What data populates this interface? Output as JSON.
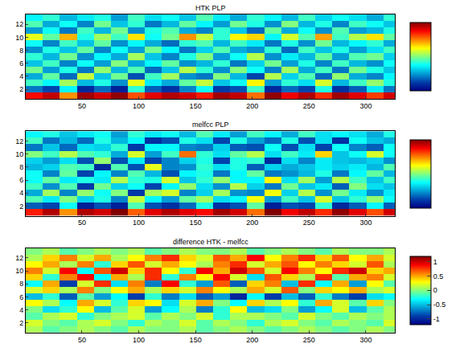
{
  "chart_data": [
    {
      "type": "heatmap",
      "title": "HTK PLP",
      "x": [
        8,
        23,
        38,
        53,
        68,
        83,
        98,
        113,
        128,
        143,
        158,
        173,
        188,
        203,
        218,
        233,
        248,
        263,
        278,
        293,
        308,
        323
      ],
      "y": [
        1,
        2,
        3,
        4,
        5,
        6,
        7,
        8,
        9,
        10,
        11,
        12,
        13
      ],
      "z": [
        [
          3.2,
          3.6,
          2.4,
          3.8,
          3.5,
          3.9,
          2.8,
          3.4,
          3.7,
          3.5,
          3.1,
          3.8,
          3.6,
          2.6,
          3.9,
          3.3,
          3.7,
          3.0,
          3.8,
          3.4,
          2.9,
          3.5
        ],
        [
          -0.8,
          -1.2,
          0.2,
          -1.5,
          -0.9,
          -1.6,
          0.5,
          -1.0,
          -1.4,
          -0.7,
          0.3,
          -1.3,
          -1.1,
          0.6,
          -1.5,
          -0.9,
          -1.2,
          0.4,
          -1.4,
          -1.0,
          0.1,
          -0.8
        ],
        [
          0.6,
          0.2,
          1.2,
          -0.3,
          0.4,
          -0.6,
          1.6,
          0.1,
          -0.4,
          0.8,
          1.4,
          -0.2,
          0.3,
          1.8,
          -0.5,
          0.5,
          0.0,
          1.5,
          -0.3,
          0.6,
          1.1,
          0.4
        ],
        [
          -0.4,
          0.8,
          -0.9,
          1.4,
          -0.2,
          0.9,
          -1.1,
          0.6,
          1.2,
          -0.6,
          -0.8,
          1.0,
          -0.3,
          -1.2,
          1.3,
          -0.1,
          0.7,
          -0.9,
          1.1,
          -0.4,
          -0.7,
          0.2
        ],
        [
          0.9,
          -0.5,
          0.4,
          -0.8,
          1.1,
          -0.3,
          0.7,
          -0.9,
          -0.2,
          1.3,
          0.5,
          -0.6,
          1.0,
          0.3,
          -0.7,
          1.2,
          -0.4,
          0.6,
          -0.8,
          0.9,
          0.4,
          -0.2
        ],
        [
          -0.2,
          0.6,
          -0.7,
          0.3,
          -0.5,
          1.0,
          -0.4,
          0.2,
          0.8,
          -0.6,
          -0.3,
          0.5,
          -0.8,
          -0.1,
          0.9,
          -0.5,
          0.4,
          -0.7,
          0.6,
          -0.3,
          -0.6,
          0.3
        ],
        [
          0.5,
          -0.3,
          0.9,
          -0.6,
          0.2,
          -0.4,
          1.2,
          -0.2,
          -0.7,
          0.4,
          1.0,
          -0.5,
          0.3,
          1.3,
          -0.6,
          0.1,
          -0.3,
          0.8,
          -0.5,
          0.7,
          0.9,
          -0.1
        ],
        [
          -0.6,
          0.4,
          -0.2,
          0.8,
          -0.7,
          0.3,
          -0.5,
          0.9,
          0.2,
          -0.8,
          -0.1,
          0.7,
          -0.4,
          -0.6,
          0.5,
          -0.9,
          0.6,
          -0.2,
          0.4,
          -0.5,
          0.0,
          0.6
        ],
        [
          0.3,
          -0.7,
          0.6,
          -0.2,
          0.8,
          -0.6,
          0.2,
          -0.4,
          -0.9,
          0.5,
          0.7,
          -0.3,
          0.6,
          0.1,
          -0.8,
          0.4,
          -0.6,
          0.9,
          -0.3,
          0.2,
          0.5,
          -0.4
        ],
        [
          1.6,
          0.8,
          2.2,
          0.4,
          1.2,
          0.6,
          1.9,
          0.3,
          0.9,
          2.4,
          1.4,
          0.5,
          1.8,
          2.0,
          0.2,
          1.5,
          0.7,
          2.3,
          0.6,
          1.3,
          1.9,
          0.8
        ],
        [
          -0.5,
          0.3,
          -0.8,
          0.6,
          -0.3,
          0.9,
          -0.6,
          0.4,
          0.7,
          -0.4,
          -0.7,
          0.5,
          -0.2,
          -0.9,
          0.8,
          -0.4,
          0.3,
          -0.6,
          0.7,
          -0.5,
          -0.3,
          0.4
        ],
        [
          0.7,
          -0.4,
          0.3,
          -0.7,
          0.9,
          -0.2,
          0.5,
          -0.8,
          -0.3,
          0.8,
          0.2,
          -0.5,
          0.9,
          0.4,
          -0.6,
          1.0,
          -0.3,
          0.4,
          -0.7,
          0.6,
          0.3,
          -0.2
        ],
        [
          0.2,
          0.5,
          -0.3,
          0.1,
          0.4,
          -0.5,
          0.6,
          0.0,
          0.3,
          -0.2,
          0.7,
          0.1,
          -0.4,
          0.5,
          0.2,
          -0.3,
          0.6,
          -0.1,
          0.3,
          0.0,
          -0.4,
          0.5
        ]
      ],
      "xlim": [
        0.5,
        325.5
      ],
      "xticks": [
        50,
        100,
        150,
        200,
        250,
        300
      ],
      "ylim": [
        0.5,
        13.5
      ],
      "yticks": [
        2,
        4,
        6,
        8,
        10,
        12
      ],
      "colorbar": {
        "range": [
          -2,
          4
        ]
      }
    },
    {
      "type": "heatmap",
      "title": "melfcc PLP",
      "x": [
        8,
        23,
        38,
        53,
        68,
        83,
        98,
        113,
        128,
        143,
        158,
        173,
        188,
        203,
        218,
        233,
        248,
        263,
        278,
        293,
        308,
        323
      ],
      "y": [
        1,
        2,
        3,
        4,
        5,
        6,
        7,
        8,
        9,
        10,
        11,
        12,
        13
      ],
      "z": [
        [
          3.1,
          3.7,
          2.4,
          3.7,
          3.5,
          4.0,
          2.7,
          3.4,
          3.7,
          3.4,
          3.2,
          3.8,
          3.5,
          2.6,
          4.0,
          3.3,
          3.6,
          3.0,
          3.9,
          3.4,
          2.8,
          3.5
        ],
        [
          -1.0,
          -1.2,
          0.3,
          -1.6,
          -1.1,
          -1.6,
          0.7,
          -1.1,
          -1.4,
          -0.9,
          0.4,
          -1.4,
          -1.1,
          0.8,
          -1.6,
          -1.1,
          -1.2,
          0.5,
          -1.5,
          -1.0,
          0.2,
          -1.0
        ],
        [
          0.7,
          0.1,
          1.0,
          -0.1,
          0.4,
          -0.7,
          1.4,
          0.2,
          -0.5,
          0.8,
          1.2,
          0.0,
          0.2,
          1.7,
          -0.5,
          0.6,
          -0.2,
          1.5,
          -0.2,
          0.5,
          1.1,
          0.3
        ],
        [
          -0.4,
          1.2,
          -0.7,
          1.1,
          0.3,
          1.0,
          -1.3,
          1.2,
          1.5,
          -0.7,
          -0.1,
          1.2,
          -0.6,
          -0.7,
          1.7,
          -0.1,
          1.3,
          -0.6,
          0.9,
          0.1,
          -0.6,
          0.1
        ],
        [
          0.6,
          -0.6,
          0.7,
          -1.3,
          0.9,
          -0.1,
          0.3,
          -1.2,
          0.2,
          1.1,
          0.0,
          -0.6,
          1.3,
          -0.1,
          -0.8,
          0.9,
          -0.2,
          0.1,
          -1.0,
          1.0,
          0.0,
          -0.2
        ],
        [
          0.3,
          0.8,
          0.1,
          0.4,
          0.1,
          1.3,
          0.5,
          0.4,
          1.5,
          -0.2,
          0.5,
          1.1,
          0.2,
          0.2,
          1.8,
          0.0,
          1.2,
          -0.5,
          1.3,
          0.6,
          -0.2,
          0.6
        ],
        [
          0.3,
          -0.7,
          0.8,
          -1.2,
          0.2,
          -0.7,
          0.7,
          -0.3,
          -1.1,
          0.2,
          0.4,
          -0.8,
          0.2,
          0.8,
          -0.8,
          -0.6,
          -0.3,
          0.4,
          -0.8,
          0.2,
          0.8,
          -0.3
        ],
        [
          -0.3,
          -0.1,
          0.7,
          0.6,
          -1.5,
          0.7,
          -1.1,
          1.6,
          -0.7,
          -0.6,
          0.5,
          0.0,
          0.4,
          -1.0,
          -0.1,
          -0.4,
          -0.2,
          0.1,
          -0.1,
          0.1,
          -0.3,
          0.7
        ],
        [
          -0.1,
          -0.5,
          0.0,
          -1.1,
          1.1,
          -1.1,
          0.1,
          -1.2,
          -0.7,
          -0.1,
          0.4,
          -1.2,
          0.4,
          0.5,
          -1.5,
          0.0,
          -0.7,
          0.1,
          -0.2,
          -0.3,
          -0.1,
          -0.6
        ],
        [
          1.0,
          0.6,
          1.3,
          0.7,
          0.5,
          -0.4,
          1.5,
          -0.5,
          0.6,
          2.6,
          0.5,
          0.0,
          0.8,
          1.3,
          0.0,
          0.6,
          0.1,
          2.0,
          -0.2,
          0.3,
          1.5,
          0.3
        ],
        [
          -0.8,
          -0.2,
          -0.9,
          0.0,
          -0.1,
          0.5,
          -1.3,
          0.2,
          0.2,
          -0.7,
          -0.8,
          -0.1,
          -1.0,
          -1.1,
          0.3,
          -1.1,
          0.0,
          -1.2,
          0.3,
          -0.7,
          -1.0,
          0.3
        ],
        [
          0.6,
          -0.8,
          -0.3,
          -0.9,
          0.4,
          -0.3,
          0.2,
          -1.4,
          -1.1,
          0.4,
          0.0,
          -1.2,
          0.4,
          -0.5,
          -0.9,
          0.4,
          -1.1,
          0.0,
          -1.4,
          0.3,
          -0.2,
          -0.4
        ],
        [
          0.2,
          0.4,
          -0.2,
          0.1,
          0.3,
          -0.5,
          0.5,
          0.1,
          0.3,
          -0.3,
          0.7,
          0.1,
          -0.5,
          0.6,
          0.2,
          -0.4,
          0.6,
          0.0,
          0.2,
          0.0,
          -0.4,
          0.4
        ]
      ],
      "xlim": [
        0.5,
        325.5
      ],
      "xticks": [
        50,
        100,
        150,
        200,
        250,
        300
      ],
      "ylim": [
        0.5,
        13.5
      ],
      "yticks": [
        2,
        4,
        6,
        8,
        10,
        12
      ],
      "colorbar": {
        "range": [
          -2,
          4
        ]
      }
    },
    {
      "type": "heatmap",
      "title": "difference HTK - melfcc",
      "x": [
        8,
        23,
        38,
        53,
        68,
        83,
        98,
        113,
        128,
        143,
        158,
        173,
        188,
        203,
        218,
        233,
        248,
        263,
        278,
        293,
        308,
        323
      ],
      "y": [
        1,
        2,
        3,
        4,
        5,
        6,
        7,
        8,
        9,
        10,
        11,
        12,
        13
      ],
      "z": [
        [
          0.1,
          -0.1,
          0.0,
          0.1,
          0.0,
          -0.1,
          0.1,
          0.0,
          0.0,
          0.1,
          -0.1,
          0.0,
          0.1,
          0.0,
          -0.1,
          0.0,
          0.1,
          0.0,
          -0.1,
          0.0,
          0.1,
          0.0
        ],
        [
          0.2,
          0.0,
          -0.1,
          0.1,
          0.2,
          0.0,
          -0.2,
          0.1,
          0.0,
          0.2,
          -0.1,
          0.1,
          0.0,
          -0.2,
          0.1,
          0.2,
          0.0,
          -0.1,
          0.1,
          0.0,
          -0.1,
          0.2
        ],
        [
          -0.1,
          0.1,
          0.2,
          -0.2,
          0.0,
          0.1,
          0.2,
          -0.1,
          0.1,
          0.0,
          0.2,
          -0.2,
          0.1,
          0.1,
          0.0,
          -0.1,
          0.2,
          0.0,
          -0.1,
          0.1,
          0.0,
          0.1
        ],
        [
          0.0,
          -0.4,
          -0.2,
          0.3,
          -0.5,
          -0.1,
          0.2,
          -0.6,
          -0.3,
          0.1,
          -0.7,
          -0.2,
          0.3,
          -0.5,
          -0.4,
          0.0,
          -0.6,
          -0.3,
          0.2,
          -0.5,
          -0.1,
          0.1
        ],
        [
          0.3,
          0.1,
          -0.3,
          0.5,
          0.2,
          -0.2,
          0.4,
          0.3,
          -0.4,
          0.2,
          0.5,
          0.0,
          -0.3,
          0.4,
          0.1,
          0.3,
          -0.2,
          0.5,
          0.2,
          -0.1,
          0.4,
          0.0
        ],
        [
          -0.5,
          -0.2,
          -0.8,
          -0.1,
          -0.6,
          -0.3,
          -0.9,
          -0.2,
          -0.7,
          -0.4,
          -0.8,
          -0.6,
          -1.0,
          -0.3,
          -0.9,
          -0.5,
          -0.8,
          -0.2,
          -0.7,
          -0.9,
          -0.4,
          -0.3
        ],
        [
          0.2,
          0.4,
          0.1,
          0.6,
          0.0,
          0.3,
          0.5,
          0.1,
          0.4,
          0.2,
          0.6,
          0.3,
          0.1,
          0.5,
          0.2,
          0.7,
          0.0,
          0.4,
          0.3,
          0.5,
          0.1,
          0.2
        ],
        [
          -0.3,
          0.5,
          -0.9,
          0.2,
          0.8,
          -0.4,
          0.6,
          -0.7,
          0.9,
          -0.2,
          -0.6,
          0.7,
          -0.8,
          0.4,
          0.6,
          -0.5,
          0.8,
          -0.3,
          0.5,
          -0.6,
          0.3,
          -0.1
        ],
        [
          0.4,
          -0.2,
          0.6,
          0.9,
          -0.3,
          0.5,
          0.1,
          0.8,
          -0.2,
          0.6,
          0.3,
          0.9,
          0.2,
          -0.4,
          0.7,
          0.4,
          0.1,
          0.8,
          -0.1,
          0.5,
          0.6,
          0.2
        ],
        [
          0.6,
          0.2,
          0.9,
          -0.3,
          0.7,
          1.0,
          0.4,
          0.8,
          0.3,
          -0.2,
          0.9,
          0.5,
          1.0,
          0.7,
          0.2,
          0.9,
          0.6,
          0.3,
          0.8,
          1.0,
          0.4,
          0.5
        ],
        [
          0.3,
          0.5,
          0.1,
          0.6,
          -0.2,
          0.4,
          0.7,
          0.2,
          0.5,
          0.3,
          0.1,
          0.6,
          0.8,
          0.2,
          0.5,
          0.7,
          0.3,
          0.6,
          0.4,
          0.2,
          0.7,
          0.1
        ],
        [
          0.1,
          0.4,
          0.6,
          0.2,
          0.5,
          0.1,
          0.3,
          0.6,
          0.8,
          0.4,
          0.2,
          0.7,
          0.5,
          0.9,
          0.3,
          0.6,
          0.8,
          0.4,
          0.7,
          0.3,
          0.5,
          0.2
        ],
        [
          0.0,
          0.1,
          -0.1,
          0.0,
          0.1,
          0.0,
          0.1,
          -0.1,
          0.0,
          0.1,
          0.0,
          0.0,
          0.1,
          -0.1,
          0.0,
          0.1,
          0.0,
          -0.1,
          0.1,
          0.0,
          0.0,
          0.1
        ]
      ],
      "xlim": [
        0.5,
        325.5
      ],
      "xticks": [
        50,
        100,
        150,
        200,
        250,
        300
      ],
      "ylim": [
        0.5,
        13.5
      ],
      "yticks": [
        2,
        4,
        6,
        8,
        10,
        12
      ],
      "colorbar": {
        "range": [
          -1.2,
          1.2
        ],
        "ticks": [
          -1,
          -0.5,
          0,
          0.5,
          1
        ]
      }
    }
  ]
}
